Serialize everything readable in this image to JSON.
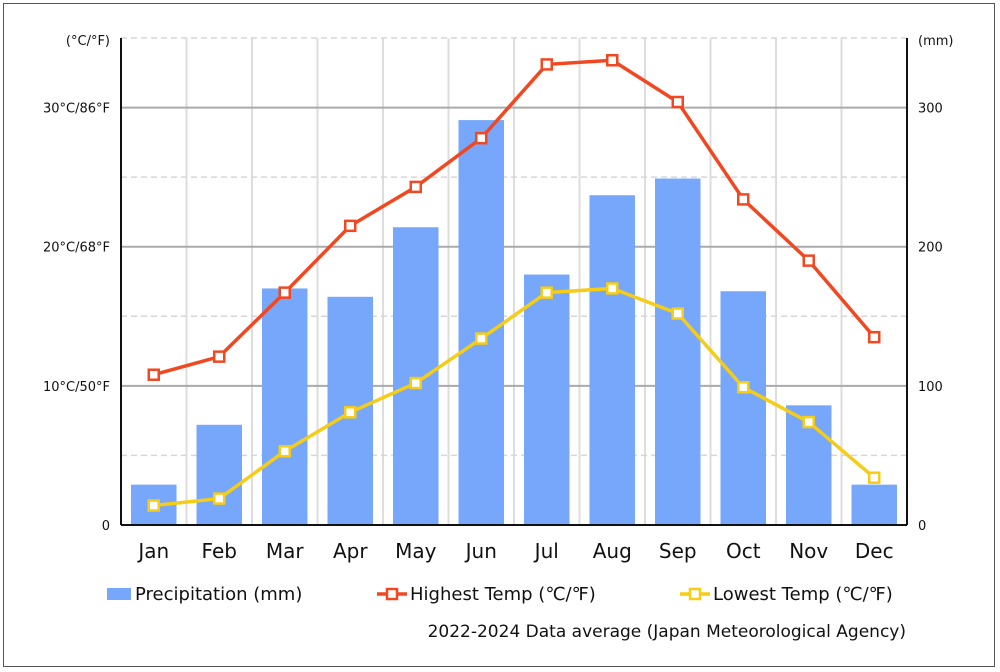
{
  "chart_data": {
    "type": "bar+line",
    "categories": [
      "Jan",
      "Feb",
      "Mar",
      "Apr",
      "May",
      "Jun",
      "Jul",
      "Aug",
      "Sep",
      "Oct",
      "Nov",
      "Dec"
    ],
    "series": [
      {
        "name": "Precipitation (mm)",
        "type": "bar",
        "axis": "right",
        "color": "#76a7fa",
        "values": [
          29,
          72,
          170,
          164,
          214,
          291,
          180,
          237,
          249,
          168,
          86,
          29
        ]
      },
      {
        "name": "Highest Temp (℃/℉)",
        "type": "line",
        "axis": "left",
        "color": "#f24822",
        "values": [
          10.8,
          12.1,
          16.7,
          21.5,
          24.3,
          27.8,
          33.1,
          33.4,
          30.4,
          23.4,
          19.0,
          13.5
        ]
      },
      {
        "name": "Lowest Temp (℃/℉)",
        "type": "line",
        "axis": "left",
        "color": "#f5cc16",
        "values": [
          1.4,
          1.9,
          5.3,
          8.1,
          10.2,
          13.4,
          16.7,
          17.0,
          15.2,
          9.9,
          7.4,
          3.4
        ]
      }
    ],
    "left_axis": {
      "label": "(°C/°F)",
      "ylim": [
        0,
        35
      ],
      "ticks": [
        {
          "v": 0,
          "label": "0"
        },
        {
          "v": 10,
          "label": "10°C/50°F"
        },
        {
          "v": 20,
          "label": "20°C/68°F"
        },
        {
          "v": 30,
          "label": "30°C/86°F"
        }
      ]
    },
    "right_axis": {
      "label": "(mm)",
      "ylim": [
        0,
        350
      ],
      "ticks": [
        {
          "v": 0,
          "label": "0"
        },
        {
          "v": 100,
          "label": "100"
        },
        {
          "v": 200,
          "label": "200"
        },
        {
          "v": 300,
          "label": "300"
        }
      ]
    },
    "legend_position": "bottom",
    "annotation": "2022-2024 Data average (Japan Meteorological Agency)"
  }
}
